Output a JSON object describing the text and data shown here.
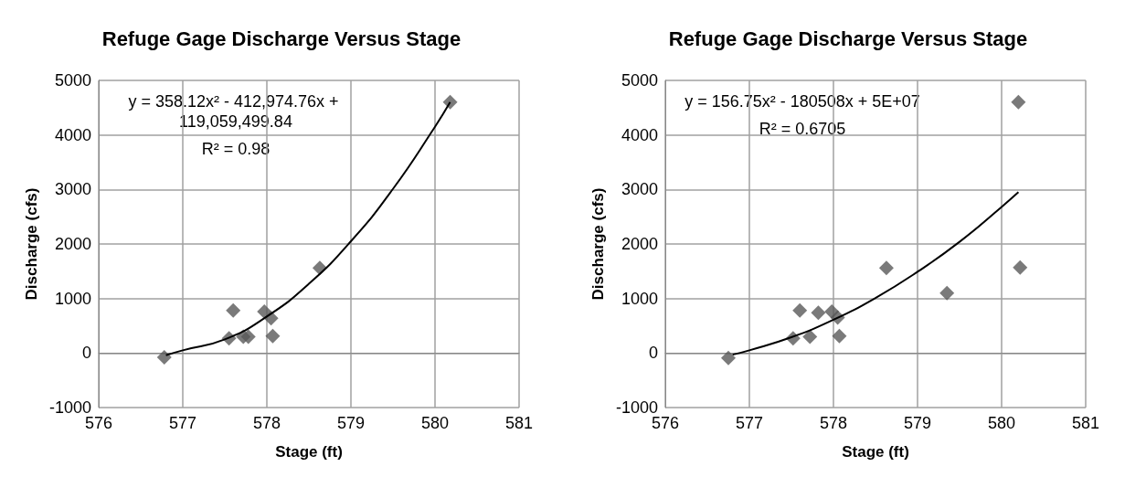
{
  "chart_data": [
    {
      "type": "scatter",
      "title": "Refuge Gage Discharge Versus Stage",
      "xlabel": "Stage (ft)",
      "ylabel": "Discharge (cfs)",
      "xlim": [
        576,
        581
      ],
      "xticks": [
        576,
        577,
        578,
        579,
        580,
        581
      ],
      "ylim": [
        -1000,
        5000
      ],
      "yticks": [
        -1000,
        0,
        1000,
        2000,
        3000,
        4000,
        5000
      ],
      "grid": true,
      "annotations": [
        "y = 358.12x² - 412,974.76x + 119,059,499.84",
        "R² = 0.98"
      ],
      "series": [
        {
          "color": "#595959",
          "marker": "diamond",
          "x": [
            576.78,
            577.55,
            577.6,
            577.72,
            577.78,
            577.97,
            578.05,
            578.07,
            578.63,
            580.18
          ],
          "values": [
            -80,
            270,
            780,
            300,
            300,
            760,
            640,
            310,
            1560,
            4600
          ]
        },
        {
          "type": "line",
          "marker": "none",
          "color": "#000000",
          "x": [
            576.8,
            577,
            577.5,
            578,
            578.5,
            579,
            579.5,
            580,
            580.18
          ],
          "values": [
            -40,
            50,
            250,
            670,
            1270,
            2050,
            3010,
            4150,
            4600
          ]
        }
      ]
    },
    {
      "type": "scatter",
      "title": "Refuge Gage Discharge Versus Stage",
      "xlabel": "Stage (ft)",
      "ylabel": "Discharge (cfs)",
      "xlim": [
        576,
        581
      ],
      "xticks": [
        576,
        577,
        578,
        579,
        580,
        581
      ],
      "ylim": [
        -1000,
        5000
      ],
      "yticks": [
        -1000,
        0,
        1000,
        2000,
        3000,
        4000,
        5000
      ],
      "grid": true,
      "annotations": [
        "y = 156.75x² - 180508x + 5E+07",
        "R² = 0.6705"
      ],
      "series": [
        {
          "color": "#595959",
          "marker": "diamond",
          "x": [
            576.75,
            577.52,
            577.6,
            577.72,
            577.82,
            577.98,
            578.05,
            578.07,
            578.63,
            579.35,
            580.2,
            580.22
          ],
          "values": [
            -90,
            270,
            780,
            300,
            740,
            760,
            650,
            310,
            1560,
            1100,
            4600,
            1570
          ]
        },
        {
          "type": "line",
          "marker": "none",
          "color": "#000000",
          "x": [
            576.8,
            577,
            577.5,
            578,
            578.5,
            579,
            579.5,
            580,
            580.2
          ],
          "values": [
            -30,
            50,
            290,
            610,
            1010,
            1490,
            2040,
            2680,
            2950
          ]
        }
      ]
    }
  ]
}
